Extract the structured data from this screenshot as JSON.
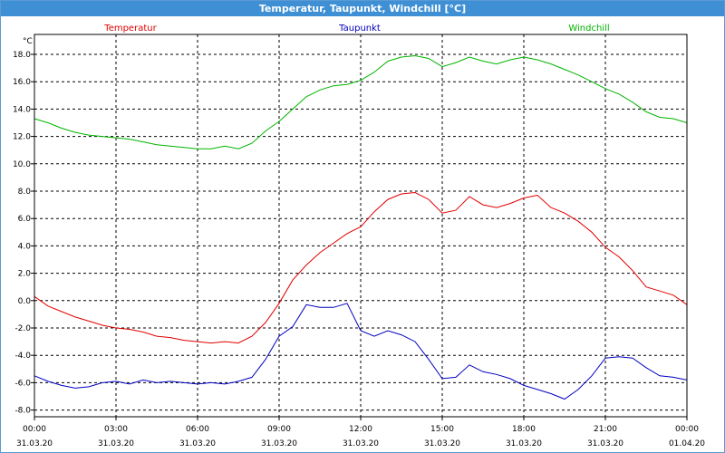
{
  "window": {
    "title": "Temperatur, Taupunkt, Windchill [°C]"
  },
  "chart_data": {
    "type": "line",
    "title": "Temperatur, Taupunkt, Windchill [°C]",
    "ylabel": "°C",
    "ylim": [
      -8,
      19
    ],
    "yticks": [
      18,
      16,
      14,
      12,
      10,
      8,
      6,
      4,
      2,
      0,
      -2,
      -4,
      -6,
      -8
    ],
    "ytick_labels": [
      "18.0",
      "16.0",
      "14.0",
      "12.0",
      "10.0",
      "8.0",
      "6.0",
      "4.0",
      "2.0",
      "0.0",
      "-2.0",
      "-4.0",
      "-6.0",
      "-8.0"
    ],
    "xlim": [
      0,
      24
    ],
    "xticks": [
      {
        "time": "00:00",
        "date": "31.03.20"
      },
      {
        "time": "03:00",
        "date": "31.03.20"
      },
      {
        "time": "06:00",
        "date": "31.03.20"
      },
      {
        "time": "09:00",
        "date": "31.03.20"
      },
      {
        "time": "12:00",
        "date": "31.03.20"
      },
      {
        "time": "15:00",
        "date": "31.03.20"
      },
      {
        "time": "18:00",
        "date": "31.03.20"
      },
      {
        "time": "21:00",
        "date": "31.03.20"
      },
      {
        "time": "00:00",
        "date": "01.04.20"
      }
    ],
    "grid": true,
    "legend_position": "top",
    "series": [
      {
        "name": "Temperatur",
        "color": "#e00000",
        "x": [
          0,
          0.5,
          1,
          1.5,
          2,
          2.5,
          3,
          3.5,
          4,
          4.5,
          5,
          5.5,
          6,
          6.5,
          7,
          7.5,
          8,
          8.5,
          9,
          9.5,
          10,
          10.5,
          11,
          11.5,
          12,
          12.5,
          13,
          13.5,
          14,
          14.5,
          15,
          15.5,
          16,
          16.5,
          17,
          17.5,
          18,
          18.5,
          19,
          19.5,
          20,
          20.5,
          21,
          21.5,
          22,
          22.5,
          23,
          23.5,
          24
        ],
        "values": [
          0.3,
          -0.4,
          -0.8,
          -1.2,
          -1.5,
          -1.8,
          -2.0,
          -2.1,
          -2.3,
          -2.6,
          -2.7,
          -2.9,
          -3.0,
          -3.1,
          -3.0,
          -3.1,
          -2.6,
          -1.6,
          -0.2,
          1.5,
          2.6,
          3.5,
          4.2,
          4.9,
          5.4,
          6.5,
          7.4,
          7.8,
          7.9,
          7.4,
          6.4,
          6.6,
          7.6,
          7.0,
          6.8,
          7.1,
          7.5,
          7.7,
          6.8,
          6.4,
          5.8,
          5.0,
          3.9,
          3.2,
          2.2,
          1.0,
          0.7,
          0.4,
          -0.3
        ]
      },
      {
        "name": "Taupunkt",
        "color": "#0000c0",
        "x": [
          0,
          0.5,
          1,
          1.5,
          2,
          2.5,
          3,
          3.5,
          4,
          4.5,
          5,
          5.5,
          6,
          6.5,
          7,
          7.5,
          8,
          8.5,
          9,
          9.5,
          10,
          10.5,
          11,
          11.5,
          12,
          12.5,
          13,
          13.5,
          14,
          14.5,
          15,
          15.5,
          16,
          16.5,
          17,
          17.5,
          18,
          18.5,
          19,
          19.5,
          20,
          20.5,
          21,
          21.5,
          22,
          22.5,
          23,
          23.5,
          24
        ],
        "values": [
          -5.5,
          -5.9,
          -6.2,
          -6.4,
          -6.3,
          -6.0,
          -5.9,
          -6.1,
          -5.8,
          -6.0,
          -5.9,
          -6.0,
          -6.1,
          -6.0,
          -6.1,
          -5.9,
          -5.6,
          -4.3,
          -2.6,
          -1.9,
          -0.3,
          -0.5,
          -0.5,
          -0.2,
          -2.2,
          -2.6,
          -2.2,
          -2.5,
          -3.0,
          -4.3,
          -5.7,
          -5.6,
          -4.7,
          -5.2,
          -5.4,
          -5.7,
          -6.2,
          -6.5,
          -6.8,
          -7.2,
          -6.5,
          -5.5,
          -4.2,
          -4.1,
          -4.2,
          -4.9,
          -5.5,
          -5.6,
          -5.8
        ]
      },
      {
        "name": "Windchill",
        "color": "#00b400",
        "x": [
          0,
          0.5,
          1,
          1.5,
          2,
          2.5,
          3,
          3.5,
          4,
          4.5,
          5,
          5.5,
          6,
          6.5,
          7,
          7.5,
          8,
          8.5,
          9,
          9.5,
          10,
          10.5,
          11,
          11.5,
          12,
          12.5,
          13,
          13.5,
          14,
          14.5,
          15,
          15.5,
          16,
          16.5,
          17,
          17.5,
          18,
          18.5,
          19,
          19.5,
          20,
          20.5,
          21,
          21.5,
          22,
          22.5,
          23,
          23.5,
          24
        ],
        "values": [
          13.3,
          13.0,
          12.6,
          12.3,
          12.1,
          12.0,
          11.9,
          11.8,
          11.6,
          11.4,
          11.3,
          11.2,
          11.1,
          11.1,
          11.3,
          11.1,
          11.5,
          12.4,
          13.1,
          14.0,
          14.9,
          15.4,
          15.7,
          15.8,
          16.1,
          16.7,
          17.5,
          17.8,
          17.9,
          17.7,
          17.1,
          17.4,
          17.8,
          17.5,
          17.3,
          17.6,
          17.8,
          17.6,
          17.3,
          16.9,
          16.5,
          16.0,
          15.5,
          15.1,
          14.5,
          13.8,
          13.4,
          13.3,
          13.0
        ]
      }
    ]
  }
}
